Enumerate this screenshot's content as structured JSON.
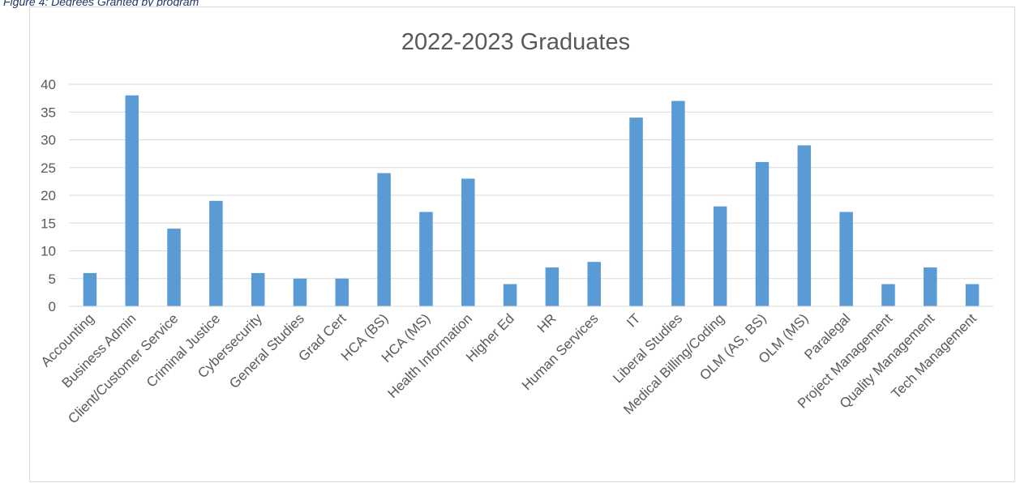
{
  "figure_caption": "Figure 4: Degrees Granted by program",
  "chart_data": {
    "type": "bar",
    "title": "2022-2023 Graduates",
    "xlabel": "",
    "ylabel": "",
    "ylim": [
      0,
      40
    ],
    "yticks": [
      0,
      5,
      10,
      15,
      20,
      25,
      30,
      35,
      40
    ],
    "grid": true,
    "legend": "none",
    "bar_color": "#5b9bd5",
    "categories": [
      "Accounting",
      "Business Admin",
      "Client/Customer Service",
      "Criminal Justice",
      "Cybersecurity",
      "General Studies",
      "Grad Cert",
      "HCA (BS)",
      "HCA (MS)",
      "Health Information",
      "Higher Ed",
      "HR",
      "Human Services",
      "IT",
      "Liberal Studies",
      "Medical Billing/Coding",
      "OLM (AS, BS)",
      "OLM (MS)",
      "Paralegal",
      "Project Management",
      "Quality Management",
      "Tech Management"
    ],
    "values": [
      6,
      38,
      14,
      19,
      6,
      5,
      5,
      24,
      17,
      23,
      4,
      7,
      8,
      34,
      37,
      18,
      26,
      29,
      17,
      4,
      7,
      4
    ]
  }
}
